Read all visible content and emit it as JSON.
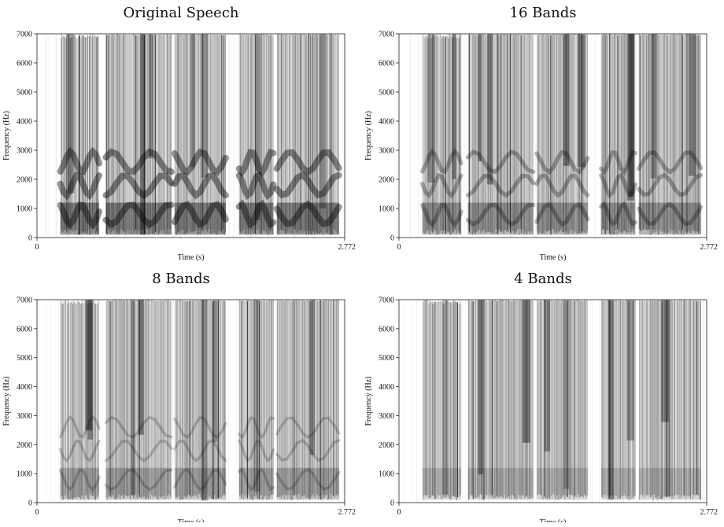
{
  "chart_data": [
    {
      "type": "heatmap",
      "title": "Original Speech",
      "xlabel": "Time (s)",
      "ylabel": "Frequency (Hz)",
      "x_tick_labels": [
        "0",
        "2.772"
      ],
      "y_tick_labels": [
        "0",
        "1000",
        "2000",
        "3000",
        "4000",
        "5000",
        "6000",
        "7000"
      ],
      "xlim": [
        0,
        2.772
      ],
      "ylim": [
        0,
        7000
      ],
      "colormap": "grayscale (dark = high energy)",
      "voiced_segments_s": [
        [
          0.21,
          0.56
        ],
        [
          0.62,
          1.21
        ],
        [
          1.24,
          1.7
        ],
        [
          1.82,
          2.13
        ],
        [
          2.16,
          2.72
        ]
      ],
      "formant_detail": "strong"
    },
    {
      "type": "heatmap",
      "title": "16 Bands",
      "xlabel": "Time (s)",
      "ylabel": "Frequency (Hz)",
      "x_tick_labels": [
        "0",
        "2.772"
      ],
      "y_tick_labels": [
        "0",
        "1000",
        "2000",
        "3000",
        "4000",
        "5000",
        "6000",
        "7000"
      ],
      "xlim": [
        0,
        2.772
      ],
      "ylim": [
        0,
        7000
      ],
      "colormap": "grayscale (dark = high energy)",
      "voiced_segments_s": [
        [
          0.21,
          0.56
        ],
        [
          0.62,
          1.21
        ],
        [
          1.24,
          1.7
        ],
        [
          1.82,
          2.13
        ],
        [
          2.16,
          2.72
        ]
      ],
      "formant_detail": "moderate"
    },
    {
      "type": "heatmap",
      "title": "8 Bands",
      "xlabel": "Time (s)",
      "ylabel": "Frequency (Hz)",
      "x_tick_labels": [
        "0",
        "2.772"
      ],
      "y_tick_labels": [
        "0",
        "1000",
        "2000",
        "3000",
        "4000",
        "5000",
        "6000",
        "7000"
      ],
      "xlim": [
        0,
        2.772
      ],
      "ylim": [
        0,
        7000
      ],
      "colormap": "grayscale (dark = high energy)",
      "voiced_segments_s": [
        [
          0.21,
          0.56
        ],
        [
          0.62,
          1.21
        ],
        [
          1.24,
          1.7
        ],
        [
          1.82,
          2.13
        ],
        [
          2.16,
          2.72
        ]
      ],
      "formant_detail": "weak"
    },
    {
      "type": "heatmap",
      "title": "4 Bands",
      "xlabel": "Time (s)",
      "ylabel": "Frequency (Hz)",
      "x_tick_labels": [
        "0",
        "2.772"
      ],
      "y_tick_labels": [
        "0",
        "1000",
        "2000",
        "3000",
        "4000",
        "5000",
        "6000",
        "7000"
      ],
      "xlim": [
        0,
        2.772
      ],
      "ylim": [
        0,
        7000
      ],
      "colormap": "grayscale (dark = high energy)",
      "voiced_segments_s": [
        [
          0.21,
          0.56
        ],
        [
          0.62,
          1.21
        ],
        [
          1.24,
          1.7
        ],
        [
          1.82,
          2.13
        ],
        [
          2.16,
          2.72
        ]
      ],
      "formant_detail": "none"
    }
  ]
}
